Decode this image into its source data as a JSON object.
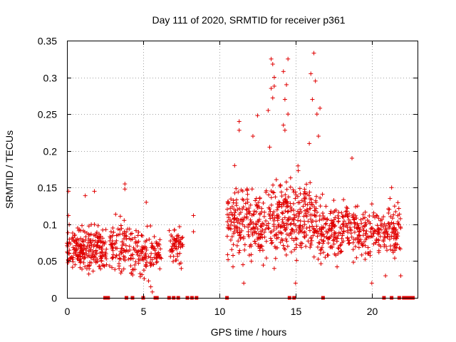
{
  "chart_data": {
    "type": "scatter",
    "title": "Day 111 of 2020, SRMTID for receiver p361",
    "xlabel": "GPS time / hours",
    "ylabel": "SRMTID / TECUs",
    "xlim": [
      0,
      23
    ],
    "ylim": [
      0,
      0.35
    ],
    "x_ticks": [
      0,
      5,
      10,
      15,
      20
    ],
    "x_tick_labels": [
      "0",
      "5",
      "10",
      "15",
      "20"
    ],
    "y_ticks": [
      0,
      0.05,
      0.1,
      0.15,
      0.2,
      0.25,
      0.3,
      0.35
    ],
    "y_tick_labels": [
      "0",
      "0.05",
      "0.1",
      "0.15",
      "0.2",
      "0.25",
      "0.3",
      "0.35"
    ],
    "grid": true,
    "marker": "+",
    "series_color": "#e00000",
    "series": [
      {
        "name": "SRMTID",
        "clusters": [
          {
            "x_range": [
              0.0,
              2.6
            ],
            "y_center": 0.065,
            "y_spread": 0.025,
            "count": 230
          },
          {
            "x_range": [
              2.8,
              4.2
            ],
            "y_center": 0.07,
            "y_spread": 0.028,
            "count": 90
          },
          {
            "x_range": [
              4.2,
              6.2
            ],
            "y_center": 0.062,
            "y_spread": 0.025,
            "count": 120
          },
          {
            "x_range": [
              6.7,
              7.6
            ],
            "y_center": 0.072,
            "y_spread": 0.025,
            "count": 55
          },
          {
            "x_range": [
              10.5,
              13.5
            ],
            "y_center": 0.1,
            "y_spread": 0.04,
            "count": 230
          },
          {
            "x_range": [
              13.5,
              16.0
            ],
            "y_center": 0.11,
            "y_spread": 0.045,
            "count": 220
          },
          {
            "x_range": [
              16.0,
              19.0
            ],
            "y_center": 0.095,
            "y_spread": 0.035,
            "count": 230
          },
          {
            "x_range": [
              19.0,
              21.9
            ],
            "y_center": 0.09,
            "y_spread": 0.03,
            "count": 200
          }
        ],
        "highlights": [
          {
            "x": 0.1,
            "y": 0.145
          },
          {
            "x": 0.1,
            "y": 0.112
          },
          {
            "x": 1.8,
            "y": 0.145
          },
          {
            "x": 1.2,
            "y": 0.139
          },
          {
            "x": 3.8,
            "y": 0.155
          },
          {
            "x": 3.8,
            "y": 0.148
          },
          {
            "x": 5.2,
            "y": 0.13
          },
          {
            "x": 5.6,
            "y": 0.008
          },
          {
            "x": 5.5,
            "y": 0.015
          },
          {
            "x": 8.3,
            "y": 0.112
          },
          {
            "x": 8.3,
            "y": 0.09
          },
          {
            "x": 11.0,
            "y": 0.18
          },
          {
            "x": 11.3,
            "y": 0.24
          },
          {
            "x": 11.3,
            "y": 0.228
          },
          {
            "x": 12.5,
            "y": 0.248
          },
          {
            "x": 12.2,
            "y": 0.22
          },
          {
            "x": 13.2,
            "y": 0.255
          },
          {
            "x": 13.4,
            "y": 0.325
          },
          {
            "x": 13.5,
            "y": 0.318
          },
          {
            "x": 13.6,
            "y": 0.3
          },
          {
            "x": 13.6,
            "y": 0.288
          },
          {
            "x": 13.4,
            "y": 0.285
          },
          {
            "x": 13.5,
            "y": 0.272
          },
          {
            "x": 13.3,
            "y": 0.205
          },
          {
            "x": 14.5,
            "y": 0.325
          },
          {
            "x": 14.2,
            "y": 0.308
          },
          {
            "x": 14.4,
            "y": 0.29
          },
          {
            "x": 14.3,
            "y": 0.27
          },
          {
            "x": 14.2,
            "y": 0.235
          },
          {
            "x": 14.3,
            "y": 0.228
          },
          {
            "x": 14.5,
            "y": 0.25
          },
          {
            "x": 16.2,
            "y": 0.333
          },
          {
            "x": 16.0,
            "y": 0.305
          },
          {
            "x": 16.3,
            "y": 0.295
          },
          {
            "x": 16.1,
            "y": 0.27
          },
          {
            "x": 16.4,
            "y": 0.25
          },
          {
            "x": 16.6,
            "y": 0.258
          },
          {
            "x": 16.5,
            "y": 0.22
          },
          {
            "x": 15.9,
            "y": 0.21
          },
          {
            "x": 15.0,
            "y": 0.02
          },
          {
            "x": 13.6,
            "y": 0.04
          },
          {
            "x": 11.6,
            "y": 0.02
          },
          {
            "x": 12.7,
            "y": 0.07
          },
          {
            "x": 18.7,
            "y": 0.19
          },
          {
            "x": 20.0,
            "y": 0.02
          },
          {
            "x": 21.3,
            "y": 0.15
          },
          {
            "x": 21.9,
            "y": 0.03
          },
          {
            "x": 20.9,
            "y": 0.03
          }
        ]
      }
    ],
    "zero_markers_x": [
      2.5,
      2.7,
      3.9,
      4.3,
      5.0,
      5.8,
      5.9,
      6.7,
      7.0,
      7.3,
      7.9,
      8.2,
      8.5,
      10.5,
      14.6,
      14.9,
      16.8,
      20.8,
      21.3,
      21.8,
      22.1,
      22.3,
      22.5,
      22.7
    ]
  }
}
